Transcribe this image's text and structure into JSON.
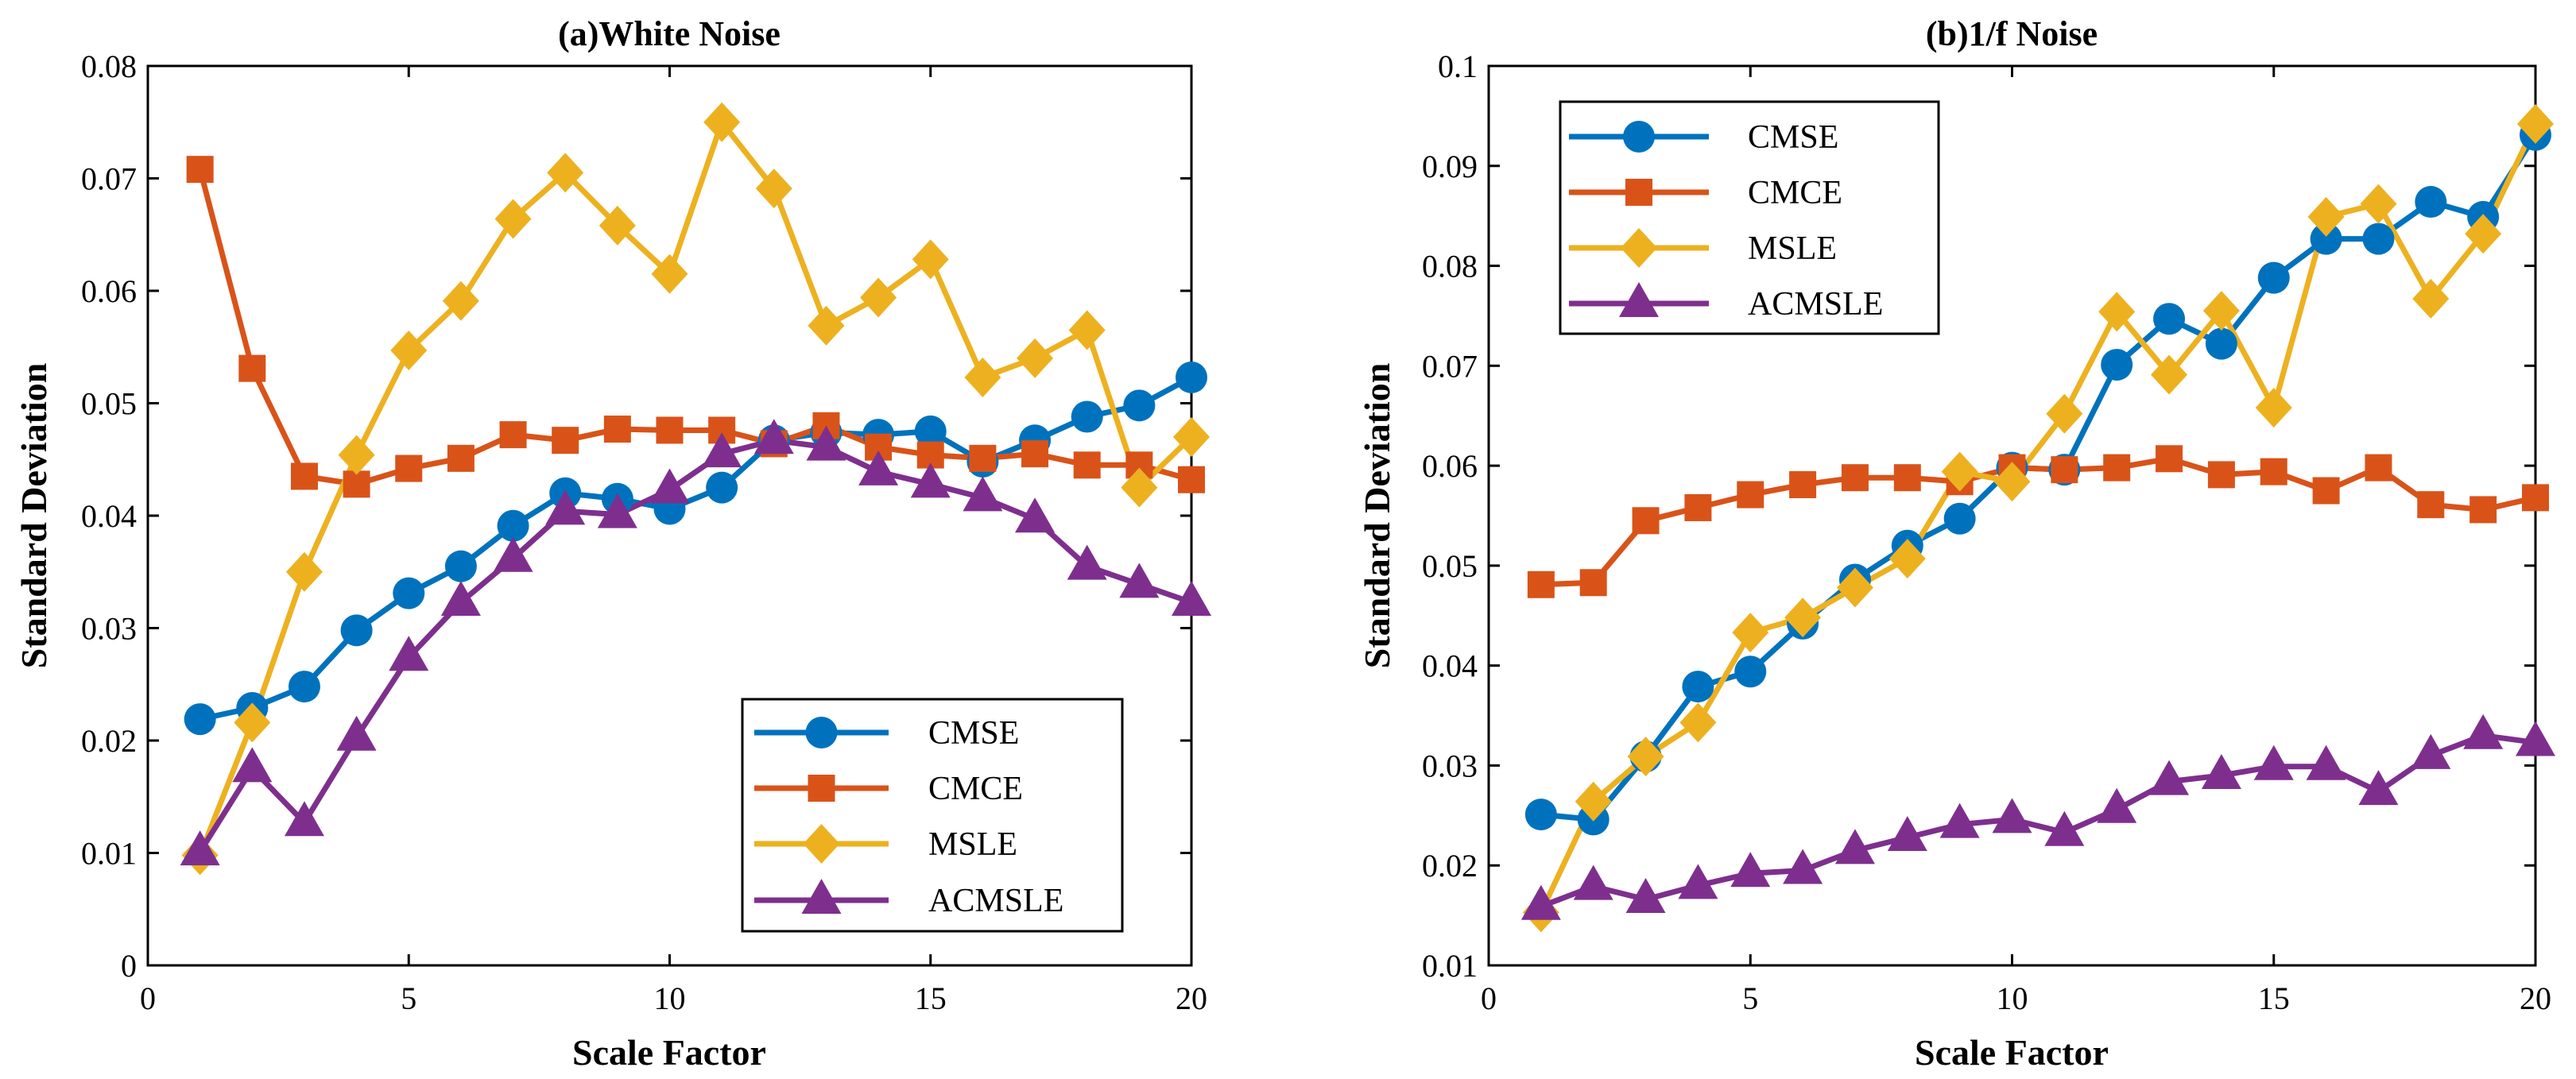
{
  "chart_data": [
    {
      "type": "line",
      "title": "(a)White Noise",
      "xlabel": "Scale Factor",
      "ylabel": "Standard Deviation",
      "x": [
        1,
        2,
        3,
        4,
        5,
        6,
        7,
        8,
        9,
        10,
        11,
        12,
        13,
        14,
        15,
        16,
        17,
        18,
        19,
        20
      ],
      "xlim": [
        0,
        20
      ],
      "ylim": [
        0,
        0.08
      ],
      "xticks": [
        "0",
        "5",
        "10",
        "15",
        "20"
      ],
      "yticks": [
        "0",
        "0.01",
        "0.02",
        "0.03",
        "0.04",
        "0.05",
        "0.06",
        "0.07",
        "0.08"
      ],
      "grid": false,
      "legend_position": "south-east",
      "series": [
        {
          "name": "CMSE",
          "marker": "circle",
          "color": "#0072BD",
          "values": [
            0.0219,
            0.0229,
            0.0248,
            0.0298,
            0.0331,
            0.0355,
            0.0391,
            0.042,
            0.0415,
            0.0406,
            0.0425,
            0.0467,
            0.0474,
            0.0472,
            0.0475,
            0.0448,
            0.0467,
            0.0488,
            0.0498,
            0.0523
          ]
        },
        {
          "name": "CMCE",
          "marker": "square",
          "color": "#D95319",
          "values": [
            0.0708,
            0.0531,
            0.0435,
            0.0428,
            0.0442,
            0.0451,
            0.0472,
            0.0467,
            0.0477,
            0.0476,
            0.0476,
            0.0464,
            0.048,
            0.0461,
            0.0454,
            0.0451,
            0.0455,
            0.0445,
            0.0445,
            0.0432
          ]
        },
        {
          "name": "MSLE",
          "marker": "diamond",
          "color": "#EDB120",
          "values": [
            0.0098,
            0.0216,
            0.035,
            0.0454,
            0.0547,
            0.0591,
            0.0664,
            0.0705,
            0.0658,
            0.0615,
            0.075,
            0.0691,
            0.0569,
            0.0594,
            0.0628,
            0.0523,
            0.054,
            0.0565,
            0.0425,
            0.047
          ]
        },
        {
          "name": "ACMSLE",
          "marker": "triangle",
          "color": "#7E2F8E",
          "values": [
            0.0101,
            0.0175,
            0.0127,
            0.0203,
            0.0274,
            0.0323,
            0.0362,
            0.0404,
            0.0401,
            0.0423,
            0.0455,
            0.0467,
            0.0461,
            0.0439,
            0.0428,
            0.0416,
            0.0397,
            0.0355,
            0.0339,
            0.0323
          ]
        }
      ]
    },
    {
      "type": "line",
      "title": "(b)1/f Noise",
      "xlabel": "Scale Factor",
      "ylabel": "Standard Deviation",
      "x": [
        1,
        2,
        3,
        4,
        5,
        6,
        7,
        8,
        9,
        10,
        11,
        12,
        13,
        14,
        15,
        16,
        17,
        18,
        19,
        20
      ],
      "xlim": [
        0,
        20
      ],
      "ylim": [
        0.01,
        0.1
      ],
      "xticks": [
        "0",
        "5",
        "10",
        "15",
        "20"
      ],
      "yticks": [
        "0.01",
        "0.02",
        "0.03",
        "0.04",
        "0.05",
        "0.06",
        "0.07",
        "0.08",
        "0.09",
        "0.1"
      ],
      "grid": false,
      "legend_position": "north-west",
      "series": [
        {
          "name": "CMSE",
          "marker": "circle",
          "color": "#0072BD",
          "values": [
            0.0251,
            0.0246,
            0.0309,
            0.0379,
            0.0394,
            0.0442,
            0.0486,
            0.052,
            0.0547,
            0.0598,
            0.0596,
            0.0701,
            0.0747,
            0.0722,
            0.0788,
            0.0827,
            0.0827,
            0.0864,
            0.0849,
            0.0931
          ]
        },
        {
          "name": "CMCE",
          "marker": "square",
          "color": "#D95319",
          "values": [
            0.0481,
            0.0483,
            0.0545,
            0.0558,
            0.0571,
            0.0581,
            0.0588,
            0.0588,
            0.0584,
            0.0598,
            0.0596,
            0.0598,
            0.0607,
            0.0591,
            0.0594,
            0.0575,
            0.0598,
            0.0561,
            0.0556,
            0.0568
          ]
        },
        {
          "name": "MSLE",
          "marker": "diamond",
          "color": "#EDB120",
          "values": [
            0.0153,
            0.0264,
            0.0309,
            0.0343,
            0.0433,
            0.0448,
            0.0478,
            0.0507,
            0.0594,
            0.0584,
            0.0652,
            0.0754,
            0.0691,
            0.0755,
            0.0658,
            0.0849,
            0.0862,
            0.0767,
            0.0832,
            0.0942
          ]
        },
        {
          "name": "ACMSLE",
          "marker": "triangle",
          "color": "#7E2F8E",
          "values": [
            0.0159,
            0.0179,
            0.0166,
            0.018,
            0.0192,
            0.0195,
            0.0215,
            0.0228,
            0.0241,
            0.0246,
            0.0233,
            0.0256,
            0.0284,
            0.029,
            0.0299,
            0.0299,
            0.0274,
            0.031,
            0.033,
            0.0323
          ]
        }
      ]
    }
  ]
}
